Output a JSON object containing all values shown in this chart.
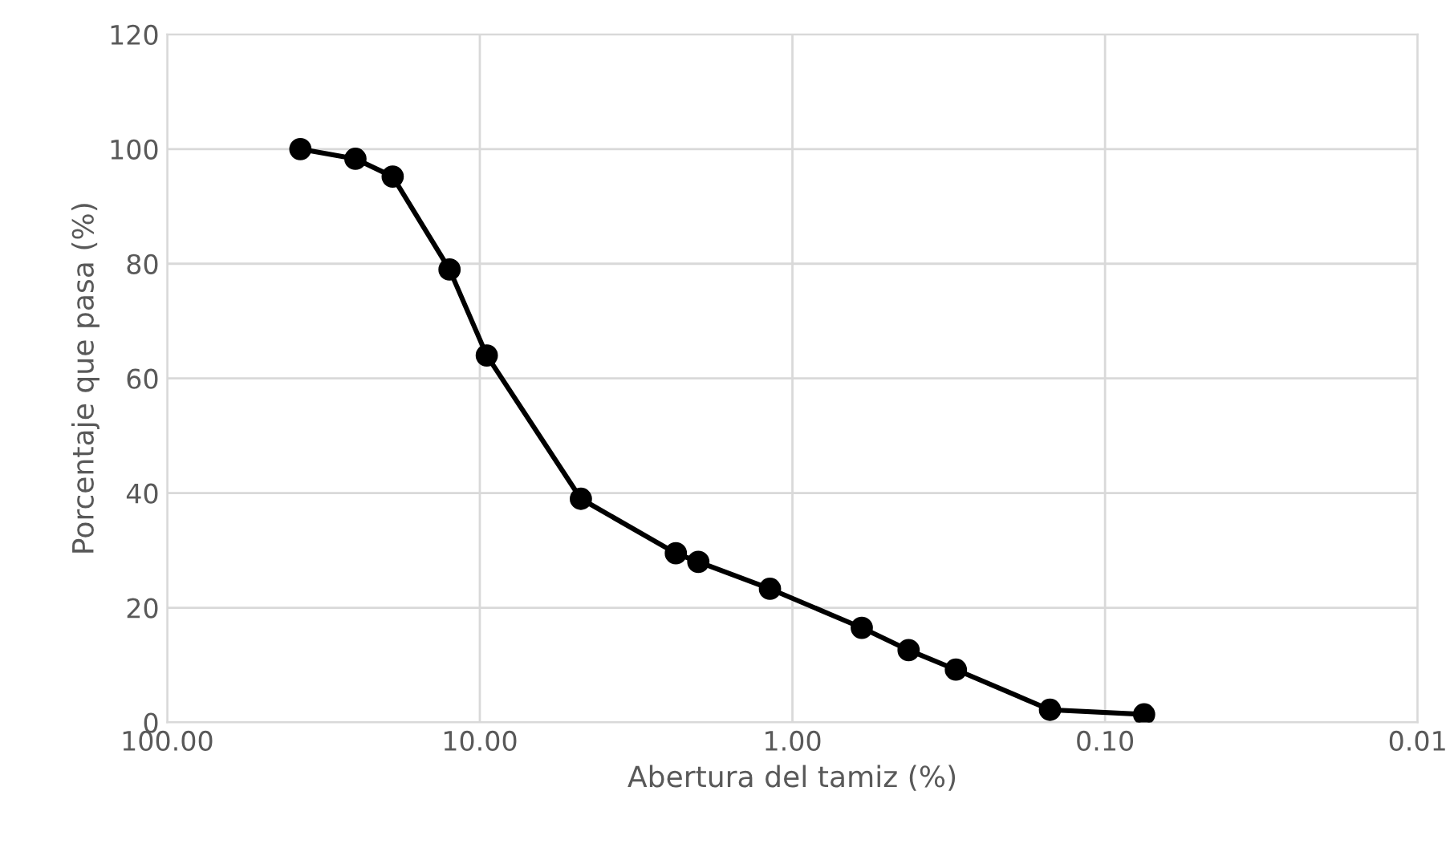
{
  "chart_data": {
    "type": "line",
    "xlabel": "Abertura del tamiz (%)",
    "ylabel": "Porcentaje que pasa (%)",
    "x": [
      37.5,
      25.0,
      19.0,
      12.5,
      9.5,
      4.75,
      2.36,
      2.0,
      1.18,
      0.6,
      0.425,
      0.3,
      0.15,
      0.075
    ],
    "series": [
      {
        "color": "#000000",
        "values": [
          100,
          98.3,
          95.2,
          79,
          64,
          39,
          29.5,
          28,
          23.3,
          16.5,
          12.6,
          9.2,
          2.2,
          1.4
        ]
      }
    ],
    "log": "x",
    "xlim": [
      100,
      0.01
    ],
    "ylim": [
      0,
      120
    ],
    "xticks": [
      {
        "value": 100,
        "label": "100.00"
      },
      {
        "value": 10,
        "label": "10.00"
      },
      {
        "value": 1,
        "label": "1.00"
      },
      {
        "value": 0.1,
        "label": "0.10"
      },
      {
        "value": 0.01,
        "label": "0.01"
      }
    ],
    "yticks": [
      0,
      20,
      40,
      60,
      80,
      100,
      120
    ],
    "grid": true,
    "marker": "circle",
    "line_style": "solid"
  }
}
